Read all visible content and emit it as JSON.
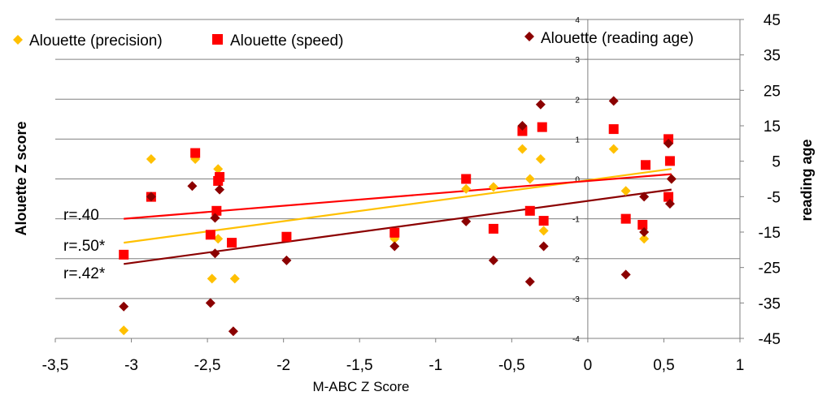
{
  "chart_data": {
    "type": "scatter",
    "xlabel": "M-ABC Z Score",
    "ylabel": "Alouette Z score",
    "y2label": "reading age",
    "xlim": [
      -3.5,
      1
    ],
    "ylim": [
      -4,
      4
    ],
    "y2lim": [
      -45,
      45
    ],
    "x_ticks": [
      "-3,5",
      "-3",
      "-2,5",
      "-2",
      "-1,5",
      "-1",
      "-0,5",
      "0",
      "0,5",
      "1"
    ],
    "y_ticks": [
      "4",
      "3",
      "2",
      "1",
      "0",
      "-1",
      "-2",
      "-3",
      "-4"
    ],
    "y2_ticks": [
      "45",
      "35",
      "25",
      "15",
      "5",
      "-5",
      "-15",
      "-25",
      "-35",
      "-45"
    ],
    "grid": "horizontal",
    "legend_position": "top",
    "colors": {
      "precision": "#FFC000",
      "speed": "#FF0000",
      "reading_age": "#8B0000",
      "grid": "#808080"
    },
    "series": [
      {
        "name": "Alouette (precision)",
        "marker": "diamond",
        "axis": "left",
        "points": [
          [
            -3.05,
            -3.8
          ],
          [
            -2.87,
            0.5
          ],
          [
            -2.58,
            0.5
          ],
          [
            -2.43,
            0.25
          ],
          [
            -2.43,
            -1.5
          ],
          [
            -2.47,
            -2.5
          ],
          [
            -2.32,
            -2.5
          ],
          [
            -1.27,
            -1.5
          ],
          [
            -0.8,
            -0.25
          ],
          [
            -0.62,
            -0.2
          ],
          [
            -0.43,
            0.75
          ],
          [
            -0.38,
            0.0
          ],
          [
            -0.31,
            0.5
          ],
          [
            -0.29,
            -1.3
          ],
          [
            0.17,
            0.75
          ],
          [
            0.25,
            -0.3
          ],
          [
            0.37,
            -1.5
          ],
          [
            0.55,
            0.0
          ]
        ]
      },
      {
        "name": "Alouette (speed)",
        "marker": "square",
        "axis": "left",
        "points": [
          [
            -3.05,
            -1.9
          ],
          [
            -2.87,
            -0.45
          ],
          [
            -2.58,
            0.65
          ],
          [
            -2.48,
            -1.4
          ],
          [
            -2.44,
            -0.8
          ],
          [
            -2.43,
            -0.05
          ],
          [
            -2.42,
            0.05
          ],
          [
            -2.34,
            -1.6
          ],
          [
            -1.98,
            -1.45
          ],
          [
            -1.27,
            -1.35
          ],
          [
            -0.8,
            0.0
          ],
          [
            -0.62,
            -1.25
          ],
          [
            -0.43,
            1.2
          ],
          [
            -0.38,
            -0.8
          ],
          [
            -0.3,
            1.3
          ],
          [
            -0.29,
            -1.05
          ],
          [
            0.17,
            1.25
          ],
          [
            0.25,
            -1.0
          ],
          [
            0.36,
            -1.15
          ],
          [
            0.38,
            0.35
          ],
          [
            0.53,
            1.0
          ],
          [
            0.54,
            0.45
          ],
          [
            0.53,
            -0.45
          ]
        ]
      },
      {
        "name": "Alouette (reading age)",
        "marker": "diamond",
        "axis": "right",
        "points": [
          [
            -3.05,
            -36
          ],
          [
            -2.87,
            -5
          ],
          [
            -2.6,
            -2
          ],
          [
            -2.48,
            -35
          ],
          [
            -2.45,
            -21
          ],
          [
            -2.45,
            -11
          ],
          [
            -2.42,
            -3
          ],
          [
            -2.33,
            -43
          ],
          [
            -1.98,
            -23
          ],
          [
            -1.27,
            -19
          ],
          [
            -0.8,
            -12
          ],
          [
            -0.62,
            -23
          ],
          [
            -0.43,
            15
          ],
          [
            -0.38,
            -29
          ],
          [
            -0.31,
            21
          ],
          [
            -0.29,
            -19
          ],
          [
            0.17,
            22
          ],
          [
            0.25,
            -27
          ],
          [
            0.37,
            -5
          ],
          [
            0.37,
            -15
          ],
          [
            0.53,
            10
          ],
          [
            0.55,
            0
          ],
          [
            0.54,
            -7
          ]
        ]
      }
    ],
    "trendlines": [
      {
        "series": "Alouette (precision)",
        "axis": "left",
        "x": [
          -3.05,
          0.55
        ],
        "y": [
          -1.6,
          0.25
        ],
        "label": "r=.50*"
      },
      {
        "series": "Alouette (speed)",
        "axis": "left",
        "x": [
          -3.05,
          0.55
        ],
        "y": [
          -1.0,
          0.12
        ],
        "label": "r=.40"
      },
      {
        "series": "Alouette (reading age)",
        "axis": "right",
        "x": [
          -3.05,
          0.55
        ],
        "y": [
          -24,
          -3
        ],
        "label": "r=.42*"
      }
    ]
  }
}
